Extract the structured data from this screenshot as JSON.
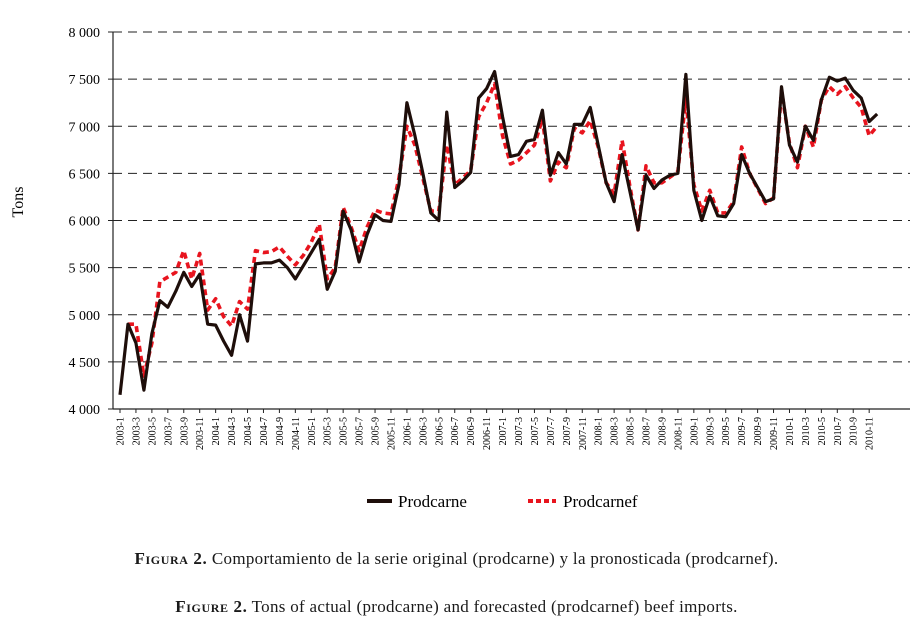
{
  "chart_data": {
    "type": "line",
    "title": "",
    "xlabel": "",
    "ylabel": "Tons",
    "ylim": [
      4000,
      8000
    ],
    "yticks": [
      4000,
      4500,
      5000,
      5500,
      6000,
      6500,
      7000,
      7500,
      8000
    ],
    "ytick_labels": [
      "4 000",
      "4 500",
      "5 000",
      "5 500",
      "6 000",
      "6 500",
      "7 000",
      "7 500",
      "8 000"
    ],
    "grid": "horizontal dashed",
    "legend": "bottom",
    "x": [
      "2003-1",
      "2003-2",
      "2003-3",
      "2003-4",
      "2003-5",
      "2003-6",
      "2003-7",
      "2003-8",
      "2003-9",
      "2003-10",
      "2003-11",
      "2003-12",
      "2004-1",
      "2004-2",
      "2004-3",
      "2004-4",
      "2004-5",
      "2004-6",
      "2004-7",
      "2004-8",
      "2004-9",
      "2004-10",
      "2004-11",
      "2004-12",
      "2005-1",
      "2005-2",
      "2005-3",
      "2005-4",
      "2005-5",
      "2005-6",
      "2005-7",
      "2005-8",
      "2005-9",
      "2005-10",
      "2005-11",
      "2005-12",
      "2006-1",
      "2006-2",
      "2006-3",
      "2006-4",
      "2006-5",
      "2006-6",
      "2006-7",
      "2006-8",
      "2006-9",
      "2006-10",
      "2006-11",
      "2006-12",
      "2007-1",
      "2007-2",
      "2007-3",
      "2007-4",
      "2007-5",
      "2007-6",
      "2007-7",
      "2007-8",
      "2007-9",
      "2007-10",
      "2007-11",
      "2007-12",
      "2008-1",
      "2008-2",
      "2008-3",
      "2008-4",
      "2008-5",
      "2008-6",
      "2008-7",
      "2008-8",
      "2008-9",
      "2008-10",
      "2008-11",
      "2008-12",
      "2009-1",
      "2009-2",
      "2009-3",
      "2009-4",
      "2009-5",
      "2009-6",
      "2009-7",
      "2009-8",
      "2009-9",
      "2009-10",
      "2009-11",
      "2009-12",
      "2010-1",
      "2010-2",
      "2010-3",
      "2010-4",
      "2010-5",
      "2010-6",
      "2010-7",
      "2010-8",
      "2010-9",
      "2010-10",
      "2010-11",
      "2010-12"
    ],
    "x_tick_labels": [
      "2003-1",
      "2003-3",
      "2003-5",
      "2003-7",
      "2003-9",
      "2003-11",
      "2004-1",
      "2004-3",
      "2004-5",
      "2004-7",
      "2004-9",
      "2004-11",
      "2005-1",
      "2005-3",
      "2005-5",
      "2005-7",
      "2005-9",
      "2005-11",
      "2006-1",
      "2006-3",
      "2006-5",
      "2006-7",
      "2006-9",
      "2006-11",
      "2007-1",
      "2007-3",
      "2007-5",
      "2007-7",
      "2007-9",
      "2007-11",
      "2008-1",
      "2008-3",
      "2008-5",
      "2008-7",
      "2008-9",
      "2008-11",
      "2009-1",
      "2009-3",
      "2009-5",
      "2009-7",
      "2009-9",
      "2009-11",
      "2010-1",
      "2010-3",
      "2010-5",
      "2010-7",
      "2010-9",
      "2010-11"
    ],
    "series": [
      {
        "name": "Prodcarne",
        "color": "#1e0e0a",
        "style": "solid",
        "values": [
          4150,
          4900,
          4700,
          4200,
          4800,
          5150,
          5080,
          5250,
          5450,
          5300,
          5430,
          4900,
          4890,
          4720,
          4570,
          5000,
          4720,
          5540,
          5550,
          5550,
          5580,
          5500,
          5380,
          5520,
          5660,
          5800,
          5270,
          5460,
          6100,
          5900,
          5560,
          5850,
          6060,
          6000,
          5990,
          6380,
          7250,
          6900,
          6500,
          6080,
          6000,
          7150,
          6350,
          6420,
          6510,
          7300,
          7400,
          7580,
          7100,
          6680,
          6700,
          6840,
          6860,
          7170,
          6480,
          6720,
          6600,
          7020,
          7020,
          7200,
          6800,
          6400,
          6200,
          6700,
          6300,
          5900,
          6480,
          6340,
          6430,
          6480,
          6500,
          7550,
          6320,
          6000,
          6260,
          6050,
          6040,
          6180,
          6700,
          6500,
          6350,
          6200,
          6230,
          7420,
          6800,
          6620,
          7000,
          6850,
          7280,
          7520,
          7480,
          7510,
          7380,
          7300,
          7050,
          7130
        ]
      },
      {
        "name": "Prodcarnef",
        "color": "#e8141e",
        "style": "dashed",
        "values": [
          null,
          4900,
          4900,
          4350,
          4700,
          5350,
          5400,
          5450,
          5680,
          5380,
          5650,
          5050,
          5170,
          4980,
          4880,
          5140,
          5060,
          5680,
          5660,
          5670,
          5720,
          5620,
          5530,
          5630,
          5770,
          5960,
          5380,
          5500,
          6140,
          5930,
          5680,
          5930,
          6110,
          6080,
          6070,
          6450,
          7000,
          6800,
          6450,
          6100,
          6100,
          6800,
          6380,
          6450,
          6530,
          7100,
          7250,
          7450,
          6900,
          6600,
          6640,
          6720,
          6800,
          7080,
          6420,
          6620,
          6560,
          6980,
          6930,
          7060,
          6780,
          6400,
          6280,
          6850,
          6350,
          5900,
          6580,
          6400,
          6400,
          6460,
          6520,
          7300,
          6380,
          6100,
          6320,
          6080,
          6080,
          6200,
          6780,
          6500,
          6340,
          6180,
          6240,
          7380,
          6820,
          6560,
          7000,
          6780,
          7280,
          7420,
          7340,
          7420,
          7300,
          7200,
          6900,
          7000
        ]
      }
    ]
  },
  "captions": {
    "es_label": "Figura 2.",
    "es_text": "Comportamiento de la serie original (prodcarne) y la pronosticada (prodcarnef).",
    "en_label": "Figure 2.",
    "en_text": "Tons of actual (prodcarne) and forecasted (prodcarnef) beef imports."
  }
}
